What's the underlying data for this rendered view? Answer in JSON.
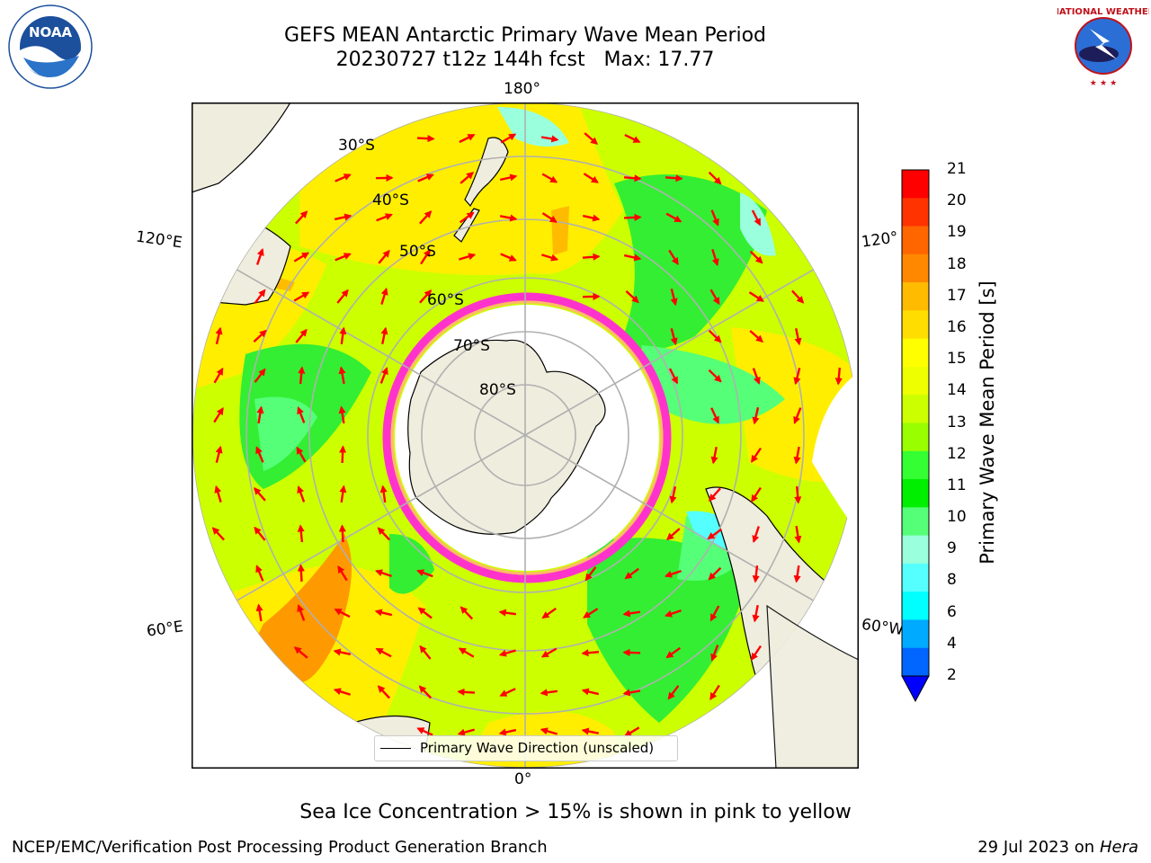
{
  "title": {
    "line1": "GEFS MEAN Antarctic Primary Wave Mean Period",
    "line2": "20230727 t12z 144h fcst   Max: 17.77"
  },
  "logos": {
    "left": {
      "name": "NOAA",
      "ring_text": "NATIONAL OCEANIC AND ATMOSPHERIC ADMINISTRATION • U.S. DEPARTMENT OF COMMERCE"
    },
    "right": {
      "name": "NATIONAL WEATHER SERVICE"
    }
  },
  "map": {
    "projection": "south polar stereographic",
    "longitude_labels": {
      "top": "180°",
      "bottom": "0°",
      "upper_left": "120°E",
      "lower_left": "60°E",
      "upper_right": "120°",
      "lower_right": "60°W"
    },
    "latitude_labels": [
      "30°S",
      "40°S",
      "50°S",
      "60°S",
      "70°S",
      "80°S"
    ],
    "colors": {
      "land": "#efedde",
      "ocean_mid": "#ccff00",
      "sea_ice": "#ff33cc",
      "arrow": "#ff0000",
      "grid": "#b0b0b0"
    }
  },
  "legend": {
    "label": "Primary Wave Direction (unscaled)"
  },
  "colorbar": {
    "label": "Primary Wave Mean Period [s]",
    "ticks": [
      "21",
      "20",
      "19",
      "18",
      "17",
      "16",
      "15",
      "14",
      "13",
      "12",
      "11",
      "10",
      "9",
      "8",
      "6",
      "4",
      "2"
    ],
    "colors": [
      "#ff0000",
      "#ff3300",
      "#ff6600",
      "#ff8800",
      "#ffbb00",
      "#ffdd00",
      "#ffff00",
      "#eeff00",
      "#ccff00",
      "#99ff00",
      "#33ff33",
      "#00ee00",
      "#55ff77",
      "#99ffdd",
      "#55ffff",
      "#00ffff",
      "#00aaff",
      "#0066ff"
    ],
    "extend_color": "#0000ff"
  },
  "caption": "Sea Ice Concentration > 15% is shown in pink to yellow",
  "footer": {
    "left": "NCEP/EMC/Verification Post Processing Product Generation Branch",
    "right_date": "29 Jul 2023 on",
    "right_host": "Hera"
  }
}
